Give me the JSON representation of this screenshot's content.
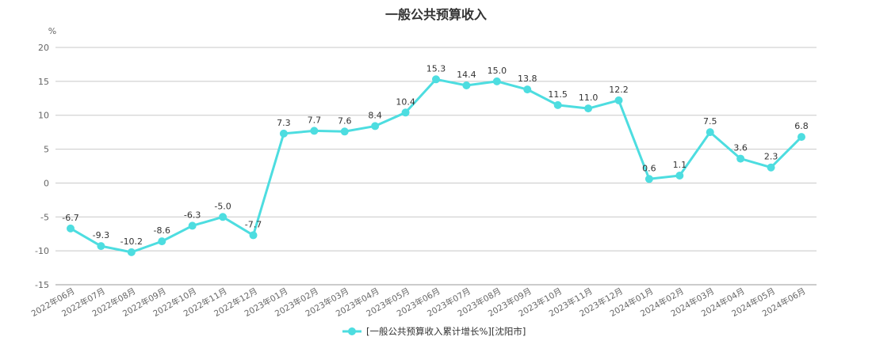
{
  "chart_data": {
    "type": "line",
    "title": "一般公共预算收入",
    "ylabel": "%",
    "xlabel": "",
    "ylim": [
      -15,
      20
    ],
    "yticks": [
      -15,
      -10,
      -5,
      0,
      5,
      10,
      15,
      20
    ],
    "grid": true,
    "legend_position": "bottom",
    "categories": [
      "2022年06月",
      "2022年07月",
      "2022年08月",
      "2022年09月",
      "2022年10月",
      "2022年11月",
      "2022年12月",
      "2023年01月",
      "2023年02月",
      "2023年03月",
      "2023年04月",
      "2023年05月",
      "2023年06月",
      "2023年07月",
      "2023年08月",
      "2023年09月",
      "2023年10月",
      "2023年11月",
      "2023年12月",
      "2024年01月",
      "2024年02月",
      "2024年03月",
      "2024年04月",
      "2024年05月",
      "2024年06月"
    ],
    "series": [
      {
        "name": "[一般公共预算收入累计增长%][沈阳市]",
        "color": "#4DDDE0",
        "values": [
          -6.7,
          -9.3,
          -10.2,
          -8.6,
          -6.3,
          -5.0,
          -7.7,
          7.3,
          7.7,
          7.6,
          8.4,
          10.4,
          15.3,
          14.4,
          15.0,
          13.8,
          11.5,
          11.0,
          12.2,
          0.6,
          1.1,
          7.5,
          3.6,
          2.3,
          6.8
        ]
      }
    ]
  }
}
